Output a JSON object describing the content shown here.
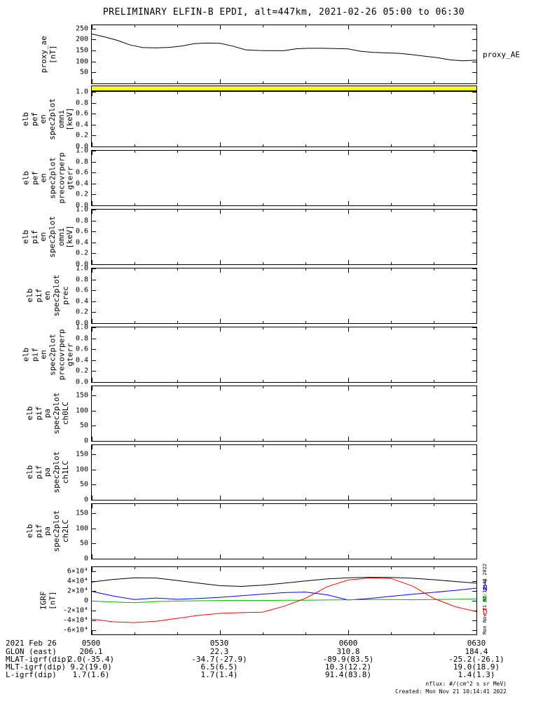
{
  "title": "PRELIMINARY ELFIN-B EPDI, alt=447km, 2021-02-26 05:00 to 06:30",
  "side_note": "Mon Nov 21 02:14:41 2022",
  "footer": {
    "date_label": "2021 Feb 26",
    "time_ticks": [
      "0500",
      "0530",
      "0600",
      "0630"
    ],
    "rows": [
      {
        "label": "GLON (east)",
        "values": [
          "206.1",
          "22.3",
          "310.8",
          "184.4"
        ]
      },
      {
        "label": "MLAT-igrf(dip)",
        "values": [
          "2.0(-35.4)",
          "-34.7(-27.9)",
          "-89.9(83.5)",
          "-25.2(-26.1)"
        ]
      },
      {
        "label": "MLT-igrf(dip)",
        "values": [
          "9.2(19.0)",
          "6.5(6.5)",
          "10.3(12.2)",
          "19.0(18.9)"
        ]
      },
      {
        "label": "L-igrf(dip)",
        "values": [
          "1.7(1.6)",
          "1.7(1.4)",
          "91.4(83.8)",
          "1.4(1.3)"
        ]
      }
    ],
    "nflux_note": "nflux: #/(cm^2 s sr MeV)",
    "created_note": "Created: Mon Nov 21 10:14:41 2022"
  },
  "chart_data": [
    {
      "type": "line",
      "name": "proxy_ae",
      "ylabel": "proxy_ae\n[nT]",
      "right_label": "proxy_AE",
      "xlim": [
        0,
        90
      ],
      "ylim": [
        0,
        265
      ],
      "yticks": [
        50,
        100,
        150,
        200,
        250
      ],
      "ytick_labels": [
        "50",
        "100",
        "150",
        "200",
        "250"
      ],
      "x": [
        0,
        3,
        6,
        9,
        12,
        15,
        18,
        21,
        24,
        27,
        30,
        33,
        36,
        39,
        42,
        45,
        48,
        51,
        54,
        57,
        60,
        63,
        66,
        69,
        72,
        75,
        78,
        81,
        84,
        87,
        90
      ],
      "series": [
        {
          "name": "proxy_AE",
          "color": "#000000",
          "values": [
            225,
            212,
            196,
            175,
            163,
            162,
            164,
            170,
            181,
            184,
            183,
            170,
            153,
            150,
            149,
            149,
            158,
            160,
            160,
            159,
            157,
            146,
            141,
            139,
            137,
            131,
            124,
            117,
            107,
            103,
            106
          ]
        }
      ]
    },
    {
      "type": "spec",
      "name": "elb_pef_en_spec2plot_omni",
      "ylabel": "elb\npef\nen\nspec2plot\nomni\n[keV]",
      "xlim": [
        0,
        90
      ],
      "ylim": [
        0,
        1
      ],
      "yticks": [
        0,
        0.2,
        0.4,
        0.6,
        0.8,
        1
      ],
      "ytick_labels": [
        "0.0",
        "0.2",
        "0.4",
        "0.6",
        "0.8",
        "1.0"
      ],
      "top_band_color": "#ffff00"
    },
    {
      "type": "spec",
      "name": "elb_pef_en_spec2plot_precovrperp_gterr",
      "ylabel": "elb\npef\nen\nspec2plot\nprecovrperp\ngterr",
      "xlim": [
        0,
        90
      ],
      "ylim": [
        0,
        1
      ],
      "yticks": [
        0,
        0.2,
        0.4,
        0.6,
        0.8,
        1
      ],
      "ytick_labels": [
        "0.0",
        "0.2",
        "0.4",
        "0.6",
        "0.8",
        "1.0"
      ]
    },
    {
      "type": "spec",
      "name": "elb_pif_en_spec2plot_omni",
      "ylabel": "elb\npif\nen\nspec2plot\nomni\n[keV]",
      "xlim": [
        0,
        90
      ],
      "ylim": [
        0,
        1
      ],
      "yticks": [
        0,
        0.2,
        0.4,
        0.6,
        0.8,
        1
      ],
      "ytick_labels": [
        "0.0",
        "0.2",
        "0.4",
        "0.6",
        "0.8",
        "1.0"
      ]
    },
    {
      "type": "spec",
      "name": "elb_pif_en_spec2plot_prec",
      "ylabel": "elb\npif\nen\nspec2plot\nprec",
      "xlim": [
        0,
        90
      ],
      "ylim": [
        0,
        1
      ],
      "yticks": [
        0,
        0.2,
        0.4,
        0.6,
        0.8,
        1
      ],
      "ytick_labels": [
        "0.0",
        "0.2",
        "0.4",
        "0.6",
        "0.8",
        "1.0"
      ]
    },
    {
      "type": "spec",
      "name": "elb_pif_en_spec2plot_precovrperp_gterr",
      "ylabel": "elb\npif\nen\nspec2plot\nprecovrperp\ngterr",
      "xlim": [
        0,
        90
      ],
      "ylim": [
        0,
        1
      ],
      "yticks": [
        0,
        0.2,
        0.4,
        0.6,
        0.8,
        1
      ],
      "ytick_labels": [
        "0.0",
        "0.2",
        "0.4",
        "0.6",
        "0.8",
        "1.0"
      ]
    },
    {
      "type": "spec",
      "name": "elb_pif_pa_spec2plot_ch0LC",
      "ylabel": "elb\npif\npa\nspec2plot\nch0LC",
      "xlim": [
        0,
        90
      ],
      "ylim": [
        0,
        180
      ],
      "yticks": [
        0,
        50,
        100,
        150
      ],
      "ytick_labels": [
        "0",
        "50",
        "100",
        "150"
      ]
    },
    {
      "type": "spec",
      "name": "elb_pif_pa_spec2plot_ch1LC",
      "ylabel": "elb\npif\npa\nspec2plot\nch1LC",
      "xlim": [
        0,
        90
      ],
      "ylim": [
        0,
        180
      ],
      "yticks": [
        0,
        50,
        100,
        150
      ],
      "ytick_labels": [
        "0",
        "50",
        "100",
        "150"
      ]
    },
    {
      "type": "spec",
      "name": "elb_pif_pa_spec2plot_ch2LC",
      "ylabel": "elb\npif\npa\nspec2plot\nch2LC",
      "xlim": [
        0,
        90
      ],
      "ylim": [
        0,
        180
      ],
      "yticks": [
        0,
        50,
        100,
        150
      ],
      "ytick_labels": [
        "0",
        "50",
        "100",
        "150"
      ]
    },
    {
      "type": "line",
      "name": "igrf",
      "ylabel": "IGRF\n[nT]",
      "xlim": [
        0,
        90
      ],
      "ylim": [
        -68000,
        68000
      ],
      "yticks": [
        -60000,
        -40000,
        -20000,
        0,
        20000,
        40000,
        60000
      ],
      "ytick_labels": [
        "-6×10⁴",
        "-4×10⁴",
        "-2×10⁴",
        "0",
        "2×10⁴",
        "4×10⁴",
        "6×10⁴"
      ],
      "x": [
        0,
        5,
        10,
        15,
        20,
        25,
        30,
        35,
        40,
        45,
        50,
        55,
        60,
        65,
        70,
        75,
        80,
        85,
        90
      ],
      "series": [
        {
          "name": "T",
          "label": "T",
          "color": "#000000",
          "values": [
            38000,
            43000,
            46500,
            46000,
            41000,
            35500,
            30500,
            29000,
            31500,
            35500,
            40000,
            44000,
            46500,
            47500,
            47000,
            45500,
            42500,
            39000,
            35500
          ]
        },
        {
          "name": "N",
          "label": "N",
          "color": "#0000ff",
          "values": [
            19000,
            9500,
            2500,
            5500,
            3000,
            4500,
            7000,
            10000,
            13500,
            16500,
            17500,
            12000,
            1500,
            4500,
            9000,
            13000,
            17000,
            21000,
            25500
          ]
        },
        {
          "name": "E",
          "label": "E",
          "color": "#00b400",
          "values": [
            -500,
            -2500,
            -4000,
            -1500,
            -500,
            0,
            500,
            500,
            500,
            1000,
            1000,
            1500,
            2000,
            2500,
            2500,
            2000,
            2500,
            3000,
            3500
          ]
        },
        {
          "name": "D",
          "label": "D",
          "color": "#ff0000",
          "values": [
            -37000,
            -42500,
            -44000,
            -41500,
            -35500,
            -29500,
            -25500,
            -24000,
            -23000,
            -11000,
            5000,
            28000,
            42000,
            46000,
            45000,
            30000,
            5000,
            -12000,
            -22000
          ]
        }
      ]
    }
  ]
}
